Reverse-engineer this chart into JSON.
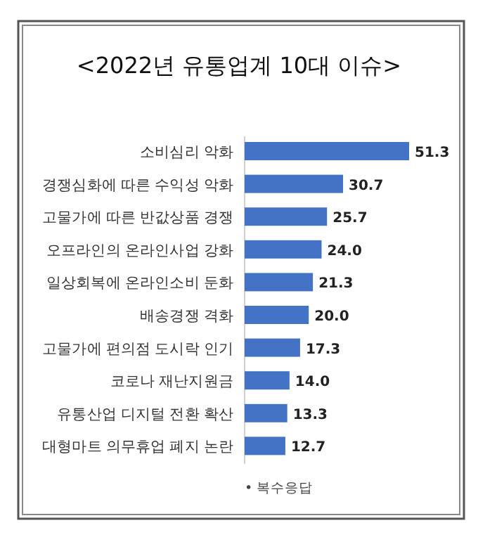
{
  "chart_data": {
    "type": "bar",
    "orientation": "horizontal",
    "title": "<2022년 유통업계 10대 이슈>",
    "categories": [
      "소비심리 악화",
      "경쟁심화에 따른 수익성 악화",
      "고물가에 따른 반값상품 경쟁",
      "오프라인의 온라인사업 강화",
      "일상회복에 온라인소비 둔화",
      "배송경쟁 격화",
      "고물가에 편의점 도시락 인기",
      "코로나 재난지원금",
      "유통산업 디지털 전환 확산",
      "대형마트 의무휴업 폐지 논란"
    ],
    "values": [
      51.3,
      30.7,
      25.7,
      24.0,
      21.3,
      20.0,
      17.3,
      14.0,
      13.3,
      12.7
    ],
    "color": "#4472c4",
    "value_labels": [
      "51.3",
      "30.7",
      "25.7",
      "24.0",
      "21.3",
      "20.0",
      "17.3",
      "14.0",
      "13.3",
      "12.7"
    ],
    "annotations": [
      "• 복수응답"
    ]
  }
}
